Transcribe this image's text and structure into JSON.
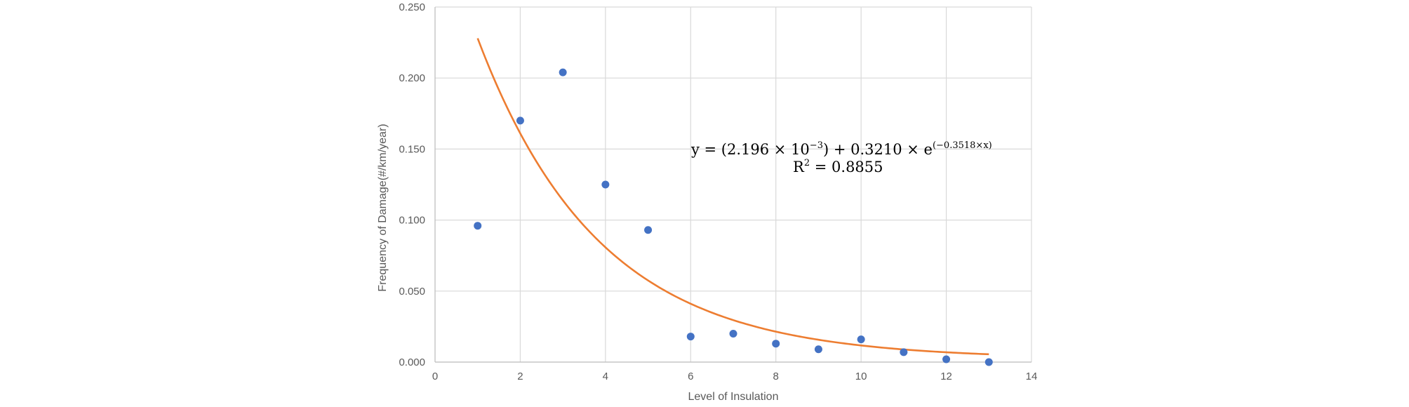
{
  "chart_data": {
    "type": "scatter",
    "title": "",
    "xlabel": "Level of Insulation",
    "ylabel": "Frequency of Damage(#/km/year)",
    "xlim": [
      0,
      14
    ],
    "ylim": [
      0,
      0.25
    ],
    "xticks": [
      "0",
      "2",
      "4",
      "6",
      "8",
      "10",
      "12",
      "14"
    ],
    "yticks": [
      "0.000",
      "0.050",
      "0.100",
      "0.150",
      "0.200",
      "0.250"
    ],
    "grid": true,
    "legend": "none",
    "series": [
      {
        "type": "scatter",
        "color": "#4472C4",
        "x": [
          1,
          2,
          3,
          4,
          5,
          6,
          7,
          8,
          9,
          10,
          11,
          12,
          13
        ],
        "y": [
          0.096,
          0.17,
          0.204,
          0.125,
          0.093,
          0.018,
          0.02,
          0.013,
          0.009,
          0.016,
          0.007,
          0.002,
          0.0
        ]
      },
      {
        "type": "line",
        "color": "#ED7D31",
        "model": "exponential",
        "params": {
          "a": 0.002196,
          "b": 0.321,
          "k": -0.3518
        },
        "x_range": [
          1,
          13
        ]
      }
    ],
    "annotation": {
      "equation_lead": "y = (2.196 × 10",
      "equation_exp1": "−3",
      "equation_mid": ") + 0.3210 × e",
      "equation_exp2": "(−0.3518×x)",
      "r2_lead": "R",
      "r2_exp": "2",
      "r2_tail": " = 0.8855"
    }
  }
}
